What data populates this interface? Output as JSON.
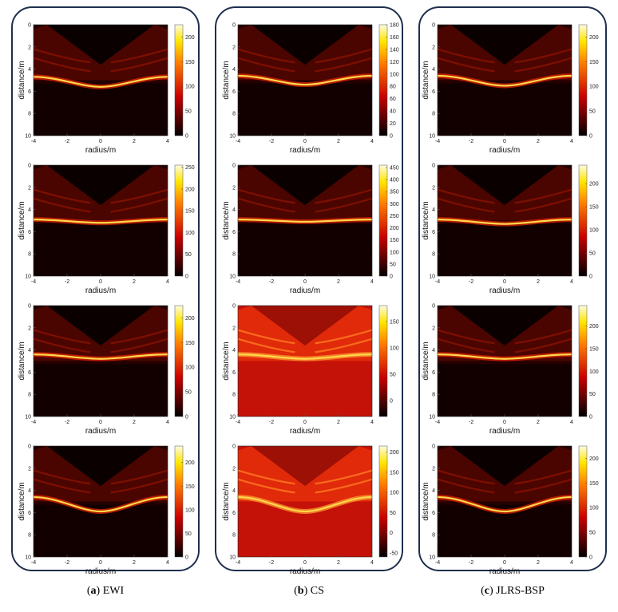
{
  "figure": {
    "columns": [
      {
        "label": "a",
        "method": "EWI"
      },
      {
        "label": "b",
        "method": "CS"
      },
      {
        "label": "c",
        "method": "JLRS-BSP"
      }
    ]
  },
  "chart_data": [
    {
      "type": "heatmap",
      "column": "EWI",
      "row": 1,
      "xlabel": "radius/m",
      "ylabel": "distance/m",
      "xlim": [
        -4,
        4
      ],
      "ylim": [
        0,
        10
      ],
      "x_ticks": [
        -4,
        -2,
        0,
        2,
        4
      ],
      "y_ticks": [
        0,
        2,
        4,
        6,
        8,
        10
      ],
      "colorbar_ticks": [
        0,
        50,
        100,
        150,
        200
      ],
      "colorbar_range": [
        0,
        225
      ],
      "colormap": "hot",
      "background": "dark",
      "interface_depth": 4.7,
      "dip_depth": 5.6
    },
    {
      "type": "heatmap",
      "column": "CS",
      "row": 1,
      "xlabel": "radius/m",
      "ylabel": "distance/m",
      "xlim": [
        -4,
        4
      ],
      "ylim": [
        0,
        10
      ],
      "x_ticks": [
        -4,
        -2,
        0,
        2,
        4
      ],
      "y_ticks": [
        0,
        2,
        4,
        6,
        8,
        10
      ],
      "colorbar_ticks": [
        0,
        20,
        40,
        60,
        80,
        100,
        120,
        140,
        160,
        180
      ],
      "colorbar_range": [
        0,
        180
      ],
      "colormap": "hot",
      "background": "dark",
      "interface_depth": 4.6,
      "dip_depth": 5.4
    },
    {
      "type": "heatmap",
      "column": "JLRS-BSP",
      "row": 1,
      "xlabel": "radius/m",
      "ylabel": "distance/m",
      "xlim": [
        -4,
        4
      ],
      "ylim": [
        0,
        10
      ],
      "x_ticks": [
        -4,
        -2,
        0,
        2,
        4
      ],
      "y_ticks": [
        0,
        2,
        4,
        6,
        8,
        10
      ],
      "colorbar_ticks": [
        0,
        50,
        100,
        150,
        200
      ],
      "colorbar_range": [
        0,
        225
      ],
      "colormap": "hot",
      "background": "dark",
      "interface_depth": 4.6,
      "dip_depth": 5.5
    },
    {
      "type": "heatmap",
      "column": "EWI",
      "row": 2,
      "xlabel": "radius/m",
      "ylabel": "distance/m",
      "xlim": [
        -4,
        4
      ],
      "ylim": [
        0,
        10
      ],
      "x_ticks": [
        -4,
        -2,
        0,
        2,
        4
      ],
      "y_ticks": [
        0,
        2,
        4,
        6,
        8,
        10
      ],
      "colorbar_ticks": [
        0,
        50,
        100,
        150,
        200,
        250
      ],
      "colorbar_range": [
        0,
        255
      ],
      "colormap": "hot",
      "background": "dark",
      "interface_depth": 4.9,
      "dip_depth": 5.2
    },
    {
      "type": "heatmap",
      "column": "CS",
      "row": 2,
      "xlabel": "radius/m",
      "ylabel": "distance/m",
      "xlim": [
        -4,
        4
      ],
      "ylim": [
        0,
        10
      ],
      "x_ticks": [
        -4,
        -2,
        0,
        2,
        4
      ],
      "y_ticks": [
        0,
        2,
        4,
        6,
        8,
        10
      ],
      "colorbar_ticks": [
        0,
        50,
        100,
        150,
        200,
        250,
        300,
        350,
        400,
        450
      ],
      "colorbar_range": [
        0,
        460
      ],
      "colormap": "hot",
      "background": "dark",
      "interface_depth": 4.9,
      "dip_depth": 5.1
    },
    {
      "type": "heatmap",
      "column": "JLRS-BSP",
      "row": 2,
      "xlabel": "radius/m",
      "ylabel": "distance/m",
      "xlim": [
        -4,
        4
      ],
      "ylim": [
        0,
        10
      ],
      "x_ticks": [
        -4,
        -2,
        0,
        2,
        4
      ],
      "y_ticks": [
        0,
        2,
        4,
        6,
        8,
        10
      ],
      "colorbar_ticks": [
        0,
        50,
        100,
        150,
        200
      ],
      "colorbar_range": [
        0,
        240
      ],
      "colormap": "hot",
      "background": "dark",
      "interface_depth": 4.9,
      "dip_depth": 5.3
    },
    {
      "type": "heatmap",
      "column": "EWI",
      "row": 3,
      "xlabel": "radius/m",
      "ylabel": "distance/m",
      "xlim": [
        -4,
        4
      ],
      "ylim": [
        0,
        10
      ],
      "x_ticks": [
        -4,
        -2,
        0,
        2,
        4
      ],
      "y_ticks": [
        0,
        2,
        4,
        6,
        8,
        10
      ],
      "colorbar_ticks": [
        0,
        50,
        100,
        150,
        200
      ],
      "colorbar_range": [
        0,
        225
      ],
      "colormap": "hot",
      "background": "dark",
      "interface_depth": 4.4,
      "dip_depth": 4.8
    },
    {
      "type": "heatmap",
      "column": "CS",
      "row": 3,
      "xlabel": "radius/m",
      "ylabel": "distance/m",
      "xlim": [
        -4,
        4
      ],
      "ylim": [
        0,
        10
      ],
      "x_ticks": [
        -4,
        -2,
        0,
        2,
        4
      ],
      "y_ticks": [
        0,
        2,
        4,
        6,
        8,
        10
      ],
      "colorbar_ticks": [
        0,
        50,
        100,
        150
      ],
      "colorbar_range": [
        -30,
        180
      ],
      "colormap": "hot",
      "background": "bright",
      "interface_depth": 4.4,
      "dip_depth": 4.8
    },
    {
      "type": "heatmap",
      "column": "JLRS-BSP",
      "row": 3,
      "xlabel": "radius/m",
      "ylabel": "distance/m",
      "xlim": [
        -4,
        4
      ],
      "ylim": [
        0,
        10
      ],
      "x_ticks": [
        -4,
        -2,
        0,
        2,
        4
      ],
      "y_ticks": [
        0,
        2,
        4,
        6,
        8,
        10
      ],
      "colorbar_ticks": [
        0,
        50,
        100,
        150,
        200
      ],
      "colorbar_range": [
        0,
        245
      ],
      "colormap": "hot",
      "background": "dark",
      "interface_depth": 4.4,
      "dip_depth": 4.8
    },
    {
      "type": "heatmap",
      "column": "EWI",
      "row": 4,
      "xlabel": "radius/m",
      "ylabel": "distance/m",
      "xlim": [
        -4,
        4
      ],
      "ylim": [
        0,
        10
      ],
      "x_ticks": [
        -4,
        -2,
        0,
        2,
        4
      ],
      "y_ticks": [
        0,
        2,
        4,
        6,
        8,
        10
      ],
      "colorbar_ticks": [
        0,
        50,
        100,
        150,
        200
      ],
      "colorbar_range": [
        0,
        235
      ],
      "colormap": "hot",
      "background": "dark",
      "interface_depth": 4.6,
      "dip_depth": 5.9
    },
    {
      "type": "heatmap",
      "column": "CS",
      "row": 4,
      "xlabel": "radius/m",
      "ylabel": "distance/m",
      "xlim": [
        -4,
        4
      ],
      "ylim": [
        0,
        10
      ],
      "x_ticks": [
        -4,
        -2,
        0,
        2,
        4
      ],
      "y_ticks": [
        0,
        2,
        4,
        6,
        8,
        10
      ],
      "colorbar_ticks": [
        -50,
        0,
        50,
        100,
        150,
        200
      ],
      "colorbar_range": [
        -60,
        215
      ],
      "colormap": "hot",
      "background": "bright",
      "interface_depth": 4.6,
      "dip_depth": 5.9
    },
    {
      "type": "heatmap",
      "column": "JLRS-BSP",
      "row": 4,
      "xlabel": "radius/m",
      "ylabel": "distance/m",
      "xlim": [
        -4,
        4
      ],
      "ylim": [
        0,
        10
      ],
      "x_ticks": [
        -4,
        -2,
        0,
        2,
        4
      ],
      "y_ticks": [
        0,
        2,
        4,
        6,
        8,
        10
      ],
      "colorbar_ticks": [
        0,
        50,
        100,
        150,
        200
      ],
      "colorbar_range": [
        0,
        225
      ],
      "colormap": "hot",
      "background": "dark",
      "interface_depth": 4.6,
      "dip_depth": 5.9
    }
  ]
}
